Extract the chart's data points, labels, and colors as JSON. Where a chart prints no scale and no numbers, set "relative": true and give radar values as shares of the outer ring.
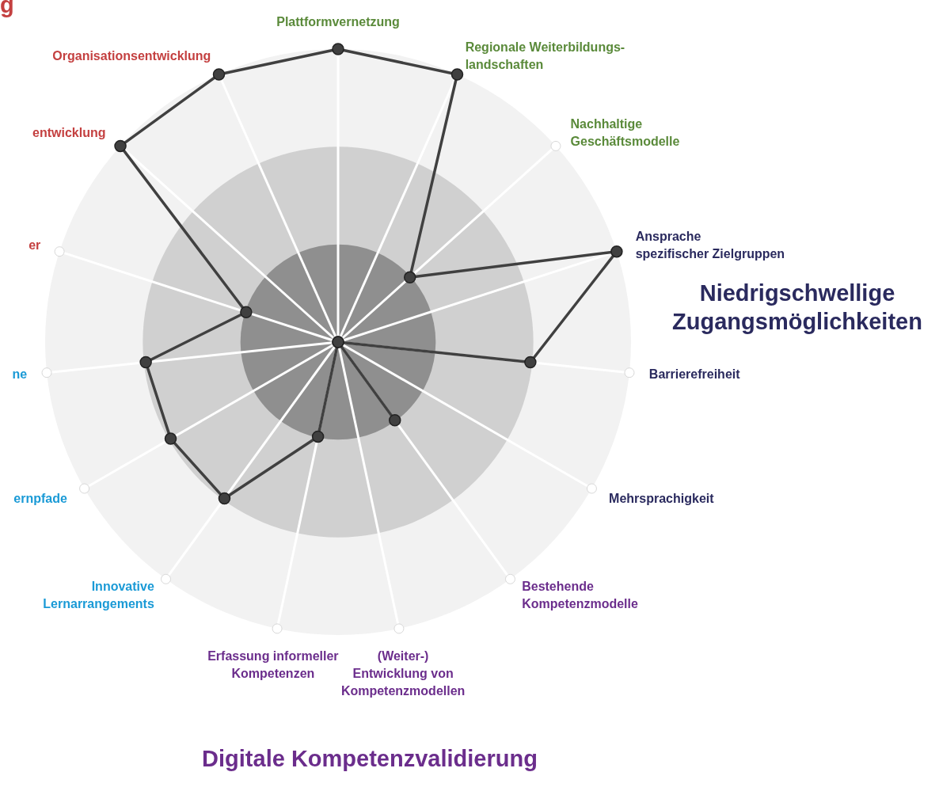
{
  "chart_data": {
    "type": "radar",
    "relative": true,
    "grid": true,
    "marker": "circle",
    "legend": false,
    "categories": [
      "Plattformvernetzung",
      "Regionale Weiterbildungs-\nlandschaften",
      "Nachhaltige\nGeschäftsmodelle",
      "Ansprache\nspezifischer Zielgruppen",
      "Barrierefreiheit",
      "Mehrsprachigkeit",
      "Bestehende\nKompetenzmodelle",
      "(Weiter-)\nEntwicklung von\nKompetenzmodellen",
      "Erfassung informeller\nKompetenzen",
      "Innovative\nLernarrangements",
      "ernpfade",
      "ne",
      "er",
      "entwicklung",
      "Organisationsentwicklung"
    ],
    "series": [
      {
        "color": "#404040",
        "values": [
          1,
          1,
          0.33,
          1,
          0.66,
          0,
          0.33,
          0,
          0.33,
          0.66,
          0.66,
          0.66,
          0.33,
          1,
          1
        ]
      }
    ],
    "annotations": [
      "Niedrigschwellige\nZugangsmöglichkeiten",
      "Digitale Kompetenzvalidierung",
      "g"
    ]
  }
}
